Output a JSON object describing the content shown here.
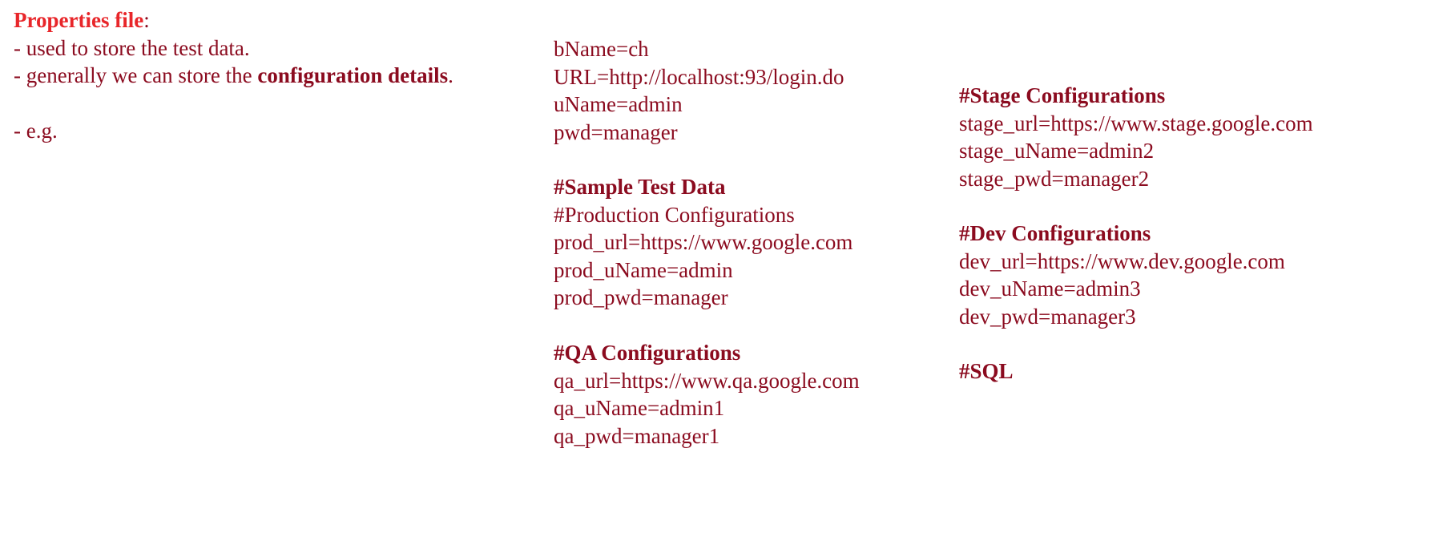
{
  "heading": {
    "title": "Properties file",
    "colon": ":"
  },
  "left": [
    "- used to store the test data.",
    [
      "- generally we can store the ",
      "configuration details",
      "."
    ],
    "- e.g."
  ],
  "middle": [
    {
      "lines": [
        "bName=ch",
        "URL=http://localhost:93/login.do",
        "uName=admin",
        "pwd=manager"
      ]
    },
    {
      "title": "#Sample Test Data",
      "lines": [
        "#Production Configurations",
        "prod_url=https://www.google.com",
        "prod_uName=admin",
        "prod_pwd=manager"
      ]
    },
    {
      "title": "#QA Configurations",
      "lines": [
        "qa_url=https://www.qa.google.com",
        "qa_uName=admin1",
        "qa_pwd=manager1"
      ]
    }
  ],
  "right": [
    {
      "title": "#Stage Configurations",
      "lines": [
        "stage_url=https://www.stage.google.com",
        "stage_uName=admin2",
        "stage_pwd=manager2"
      ]
    },
    {
      "title": "#Dev Configurations",
      "lines": [
        "dev_url=https://www.dev.google.com",
        "dev_uName=admin3",
        "dev_pwd=manager3"
      ]
    },
    {
      "title": "#SQL"
    }
  ]
}
